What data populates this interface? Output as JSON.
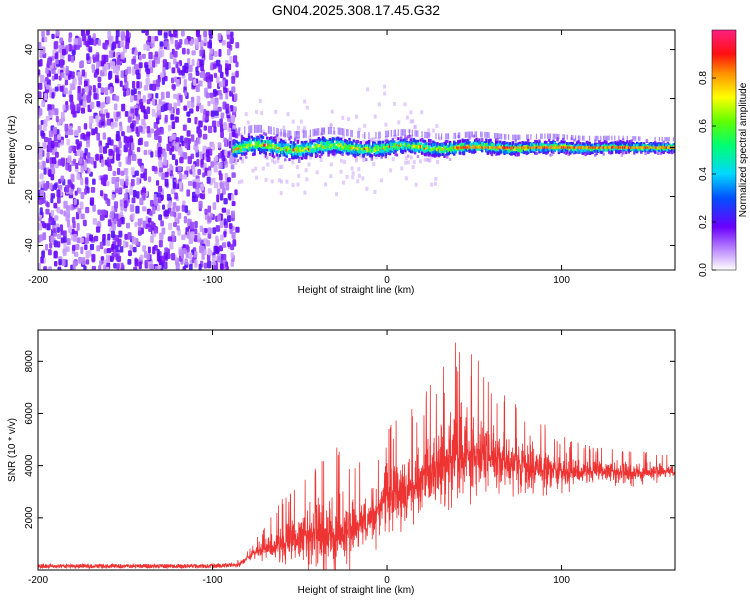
{
  "title": "GN04.2025.308.17.45.G32",
  "chart_data": [
    {
      "type": "heatmap",
      "name": "spectrogram",
      "xlabel": "Height of straight line (km)",
      "ylabel": "Frequency (Hz)",
      "xlim": [
        -200,
        165
      ],
      "ylim": [
        -50,
        48
      ],
      "xticks": [
        -200,
        -100,
        0,
        100
      ],
      "yticks": [
        -40,
        -20,
        0,
        20,
        40
      ],
      "colorbar": {
        "label": "Normalized spectral amplitude",
        "range": [
          0,
          1
        ],
        "ticks": [
          0.0,
          0.2,
          0.4,
          0.6,
          0.8
        ]
      },
      "regions": [
        {
          "description": "broadband noise",
          "x_from": -200,
          "x_to": -88,
          "amplitude_approx": 0.1
        },
        {
          "description": "carrier line near 0 Hz",
          "x_from": -88,
          "x_to": 165,
          "freq_center": 0,
          "peak_amplitude": 0.9
        }
      ]
    },
    {
      "type": "line",
      "name": "snr",
      "xlabel": "Height of straight line (km)",
      "ylabel": "SNR (10 * v/v)",
      "xlim": [
        -200,
        165
      ],
      "ylim": [
        0,
        9200
      ],
      "xticks": [
        -200,
        -100,
        0,
        100
      ],
      "yticks": [
        2000,
        4000,
        6000,
        8000
      ],
      "color": "#ee3333",
      "envelope": {
        "x": [
          -200,
          -100,
          -85,
          -75,
          -60,
          -50,
          -40,
          -30,
          -20,
          -10,
          0,
          10,
          20,
          30,
          40,
          50,
          60,
          80,
          100,
          120,
          140,
          165
        ],
        "y_mean": [
          150,
          150,
          200,
          700,
          1000,
          1200,
          1400,
          1300,
          1500,
          2000,
          2700,
          3000,
          3600,
          4000,
          4400,
          4500,
          4300,
          4000,
          3700,
          3800,
          3700,
          3800
        ],
        "y_peak": [
          300,
          300,
          400,
          1200,
          2800,
          3200,
          4200,
          4800,
          4000,
          4500,
          5500,
          6000,
          6800,
          7500,
          9000,
          8500,
          7000,
          6300,
          5200,
          4700,
          4600,
          4400
        ]
      }
    }
  ],
  "colors": {
    "accent": "#ee3333"
  }
}
